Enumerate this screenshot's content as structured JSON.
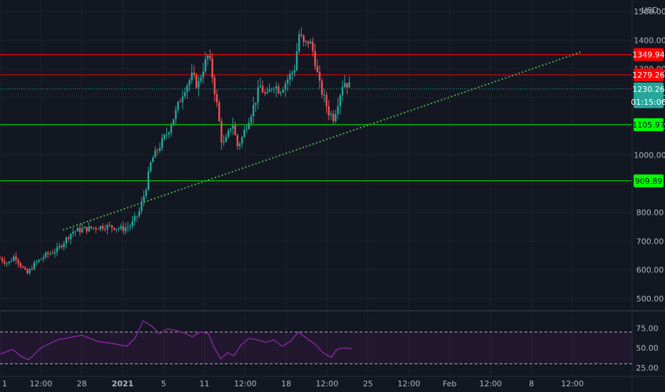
{
  "chart_data": {
    "type": "candlestick",
    "currency": "USD",
    "countdown": "01:15:06",
    "last_price": 1230.26,
    "price_axis": {
      "range": [
        460,
        1540
      ],
      "ticks": [
        500,
        600,
        700,
        800,
        900,
        1000,
        1100,
        1200,
        1300,
        1400,
        1500
      ],
      "tick_labels": [
        "500.00",
        "600.00",
        "700.00",
        "800.00",
        "900.00",
        "1000.00",
        "1100.00",
        "1200.00",
        "1300.00",
        "1400.00",
        "1500.00"
      ]
    },
    "time_axis": {
      "ticks": [
        {
          "label": "1",
          "t": 0
        },
        {
          "label": "12:00",
          "t": 0.5
        },
        {
          "label": "28",
          "t": 1
        },
        {
          "label": "2021",
          "t": 1.5
        },
        {
          "label": "5",
          "t": 2
        },
        {
          "label": "11",
          "t": 2.5
        },
        {
          "label": "12:00",
          "t": 3
        },
        {
          "label": "18",
          "t": 3.5
        },
        {
          "label": "12:00",
          "t": 4
        },
        {
          "label": "25",
          "t": 4.5
        },
        {
          "label": "12:00",
          "t": 5
        },
        {
          "label": "Feb",
          "t": 5.5
        },
        {
          "label": "12:00",
          "t": 6
        },
        {
          "label": "8",
          "t": 6.5
        },
        {
          "label": "12:00",
          "t": 7
        }
      ]
    },
    "horizontal_lines": [
      {
        "price": 1349.94,
        "label": "1349.94",
        "color": "#ff0000"
      },
      {
        "price": 1279.26,
        "label": "1279.26",
        "color": "#ff0000"
      },
      {
        "price": 1105.97,
        "label": "1105.97",
        "color": "#00ff00"
      },
      {
        "price": 909.89,
        "label": "909.89",
        "color": "#00ff00"
      }
    ],
    "trendline": {
      "color": "#4caf50",
      "style": "dotted",
      "start": {
        "t": 0.77,
        "price": 739
      },
      "end": {
        "t": 7.12,
        "price": 1360
      }
    },
    "candle_colors": {
      "up": "#26a69a",
      "down": "#ef5350"
    },
    "rsi": {
      "range": [
        15,
        95
      ],
      "levels": [
        70,
        30
      ],
      "ticks": [
        25,
        50,
        75
      ],
      "tick_labels": [
        "25.00",
        "50.00",
        "75.00"
      ],
      "color": "#9c27b0"
    },
    "price_path": [
      [
        0.0,
        640
      ],
      [
        0.1,
        622
      ],
      [
        0.18,
        650
      ],
      [
        0.28,
        604
      ],
      [
        0.33,
        585
      ],
      [
        0.42,
        620
      ],
      [
        0.55,
        650
      ],
      [
        0.7,
        670
      ],
      [
        0.8,
        704
      ],
      [
        0.88,
        732
      ],
      [
        1.0,
        741
      ],
      [
        1.15,
        747
      ],
      [
        1.28,
        752
      ],
      [
        1.4,
        749
      ],
      [
        1.5,
        742
      ],
      [
        1.6,
        755
      ],
      [
        1.7,
        800
      ],
      [
        1.78,
        880
      ],
      [
        1.85,
        980
      ],
      [
        1.95,
        1030
      ],
      [
        2.05,
        1080
      ],
      [
        2.15,
        1150
      ],
      [
        2.25,
        1230
      ],
      [
        2.35,
        1275
      ],
      [
        2.42,
        1240
      ],
      [
        2.48,
        1300
      ],
      [
        2.55,
        1350
      ],
      [
        2.6,
        1270
      ],
      [
        2.65,
        1180
      ],
      [
        2.72,
        1030
      ],
      [
        2.78,
        1060
      ],
      [
        2.84,
        1120
      ],
      [
        2.9,
        1030
      ],
      [
        2.96,
        1060
      ],
      [
        3.02,
        1110
      ],
      [
        3.1,
        1170
      ],
      [
        3.18,
        1240
      ],
      [
        3.26,
        1200
      ],
      [
        3.34,
        1250
      ],
      [
        3.42,
        1225
      ],
      [
        3.52,
        1265
      ],
      [
        3.6,
        1300
      ],
      [
        3.66,
        1425
      ],
      [
        3.72,
        1380
      ],
      [
        3.78,
        1400
      ],
      [
        3.84,
        1350
      ],
      [
        3.9,
        1250
      ],
      [
        3.96,
        1200
      ],
      [
        4.02,
        1150
      ],
      [
        4.08,
        1130
      ],
      [
        4.14,
        1195
      ],
      [
        4.2,
        1258
      ],
      [
        4.26,
        1245
      ],
      [
        4.3,
        1230
      ]
    ],
    "rsi_path": [
      [
        0.0,
        42
      ],
      [
        0.15,
        48
      ],
      [
        0.28,
        38
      ],
      [
        0.35,
        35
      ],
      [
        0.5,
        50
      ],
      [
        0.7,
        60
      ],
      [
        0.9,
        64
      ],
      [
        1.0,
        66
      ],
      [
        1.2,
        58
      ],
      [
        1.4,
        55
      ],
      [
        1.55,
        52
      ],
      [
        1.65,
        62
      ],
      [
        1.75,
        84
      ],
      [
        1.85,
        78
      ],
      [
        1.95,
        68
      ],
      [
        2.05,
        74
      ],
      [
        2.15,
        72
      ],
      [
        2.25,
        69
      ],
      [
        2.35,
        64
      ],
      [
        2.45,
        70
      ],
      [
        2.55,
        68
      ],
      [
        2.62,
        50
      ],
      [
        2.7,
        36
      ],
      [
        2.78,
        44
      ],
      [
        2.86,
        40
      ],
      [
        2.95,
        54
      ],
      [
        3.05,
        62
      ],
      [
        3.15,
        60
      ],
      [
        3.25,
        57
      ],
      [
        3.35,
        60
      ],
      [
        3.45,
        52
      ],
      [
        3.55,
        58
      ],
      [
        3.65,
        70
      ],
      [
        3.75,
        62
      ],
      [
        3.85,
        55
      ],
      [
        3.95,
        44
      ],
      [
        4.05,
        38
      ],
      [
        4.12,
        48
      ],
      [
        4.2,
        50
      ],
      [
        4.3,
        49
      ]
    ]
  }
}
